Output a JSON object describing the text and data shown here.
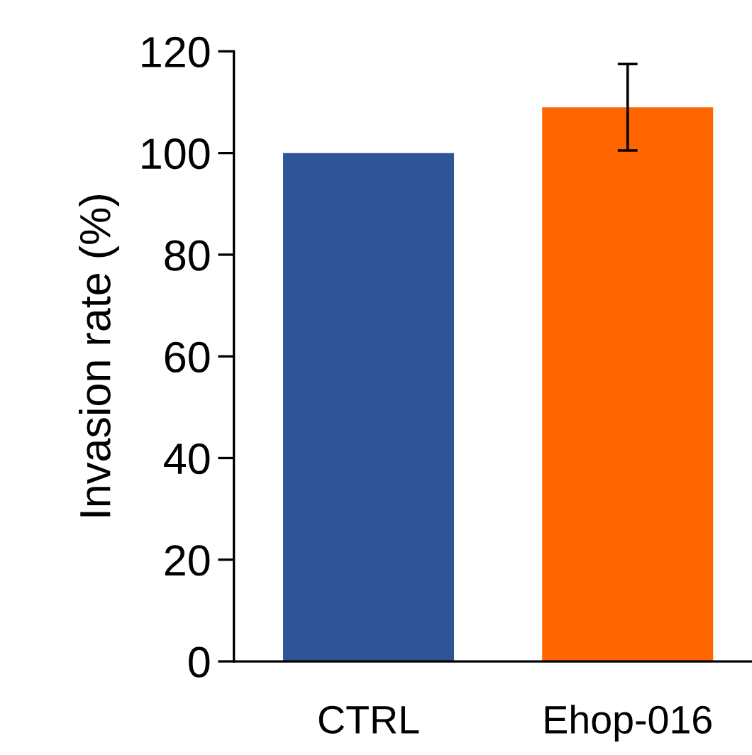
{
  "chart_data": {
    "type": "bar",
    "ylabel": "Invasion rate (%)",
    "categories": [
      "CTRL",
      "Ehop-016"
    ],
    "values": [
      100,
      109
    ],
    "errors": [
      null,
      8.5
    ],
    "colors": [
      "#2f5597",
      "#ff6600"
    ],
    "ylim": [
      0,
      120
    ],
    "yticks": [
      0,
      20,
      40,
      60,
      80,
      100,
      120
    ],
    "grid": false,
    "legend": false
  }
}
